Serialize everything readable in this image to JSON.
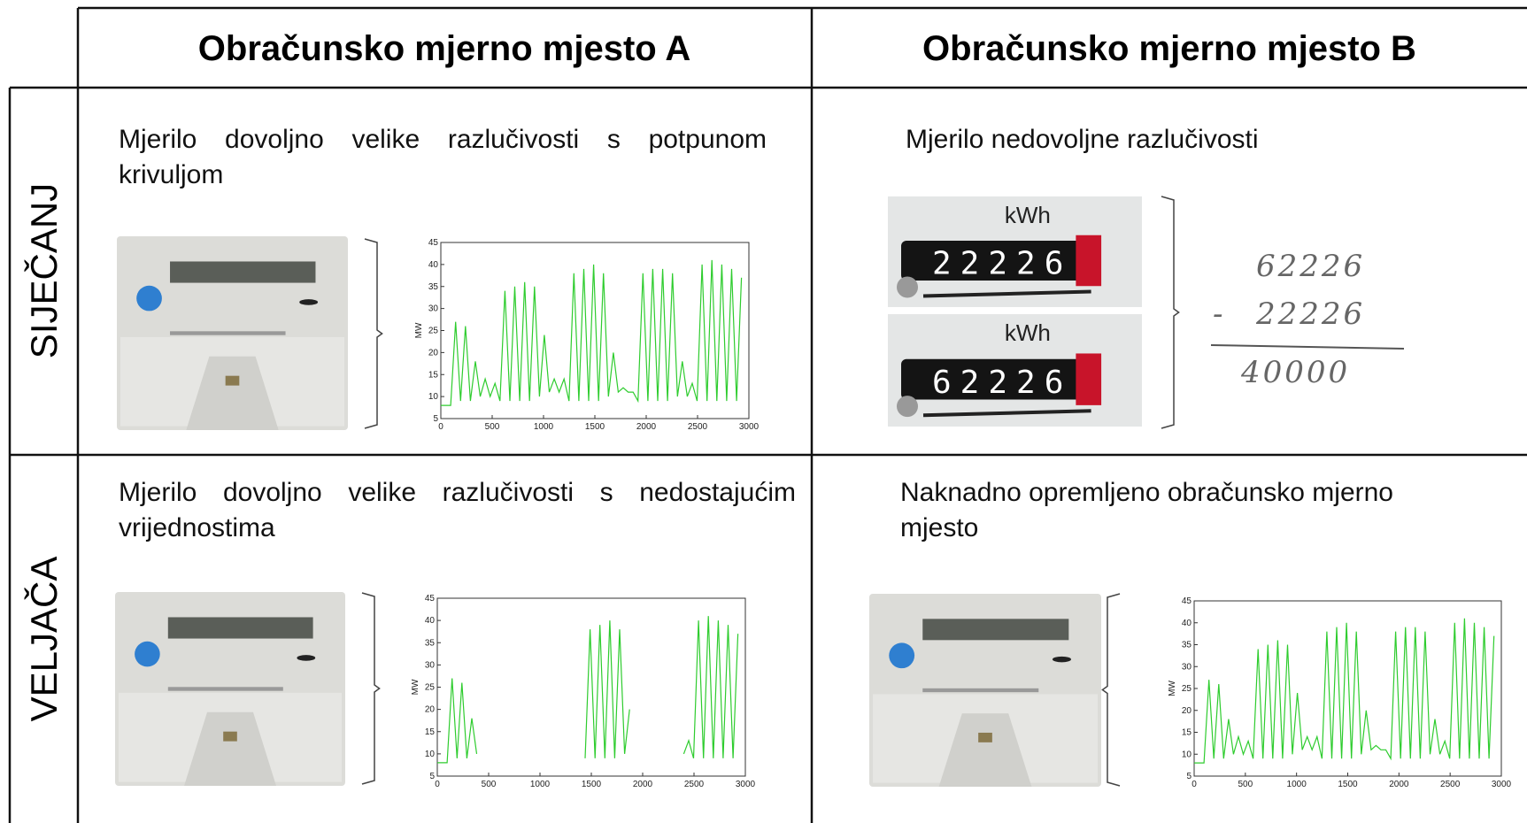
{
  "table": {
    "column_headers": [
      "Obračunsko mjerno mjesto A",
      "Obračunsko mjerno mjesto B"
    ],
    "row_headers": [
      "SIJEČANJ",
      "VELJAČA"
    ]
  },
  "cells": [
    "Mjerilo dovoljno velike razlučivosti s potpunom krivuljom",
    "Mjerilo nedovoljne razlučivosti",
    "Mjerilo dovoljno velike razlučivosti s nedostajućim vrijednostima",
    "Naknadno opremljeno obračunsko mjerno mjesto"
  ],
  "counters": [
    {
      "unit": "kWh",
      "reading": "22226"
    },
    {
      "unit": "kWh",
      "reading": "62226"
    }
  ],
  "calculation": {
    "minuend": "62226",
    "operator": "-",
    "subtrahend": "22226",
    "result": "40000"
  },
  "chart_data": [
    {
      "type": "line",
      "ylabel": "MW",
      "color": "#2ecc2e",
      "xlim": [
        0,
        3000
      ],
      "ylim": [
        5,
        45
      ],
      "xticks": [
        0,
        500,
        1000,
        1500,
        2000,
        2500,
        3000
      ],
      "yticks": [
        5,
        10,
        15,
        20,
        25,
        30,
        35,
        40,
        45
      ],
      "x": [
        0,
        48,
        96,
        144,
        192,
        240,
        288,
        336,
        384,
        432,
        480,
        528,
        576,
        624,
        672,
        720,
        768,
        816,
        864,
        912,
        960,
        1008,
        1056,
        1104,
        1152,
        1200,
        1248,
        1296,
        1344,
        1392,
        1440,
        1488,
        1536,
        1584,
        1632,
        1680,
        1728,
        1776,
        1824,
        1872,
        1920,
        1968,
        2016,
        2064,
        2112,
        2160,
        2208,
        2256,
        2304,
        2352,
        2400,
        2448,
        2496,
        2544,
        2592,
        2640,
        2688,
        2736,
        2784,
        2832,
        2880,
        2928
      ],
      "values": [
        8,
        8,
        8,
        27,
        9,
        26,
        9,
        18,
        10,
        14,
        10,
        13,
        9,
        34,
        9,
        35,
        9,
        36,
        9,
        35,
        10,
        24,
        11,
        14,
        11,
        14,
        9,
        38,
        9,
        39,
        9,
        40,
        9,
        38,
        10,
        20,
        11,
        12,
        11,
        11,
        9,
        38,
        9,
        39,
        9,
        39,
        9,
        38,
        10,
        18,
        10,
        13,
        9,
        40,
        9,
        41,
        9,
        40,
        9,
        39,
        9,
        37
      ]
    },
    {
      "type": "line",
      "ylabel": "MW",
      "color": "#2ecc2e",
      "xlim": [
        0,
        3000
      ],
      "ylim": [
        5,
        45
      ],
      "xticks": [
        0,
        500,
        1000,
        1500,
        2000,
        2500,
        3000
      ],
      "yticks": [
        5,
        10,
        15,
        20,
        25,
        30,
        35,
        40,
        45
      ],
      "x": [
        0,
        48,
        96,
        144,
        192,
        240,
        288,
        336,
        384,
        432,
        480,
        528,
        576,
        624,
        672,
        720,
        768,
        816,
        864,
        912,
        960,
        1008,
        1056,
        1104,
        1152,
        1200,
        1248,
        1296,
        1344,
        1392,
        1440,
        1488,
        1536,
        1584,
        1632,
        1680,
        1728,
        1776,
        1824,
        1872,
        1920,
        1968,
        2016,
        2064,
        2112,
        2160,
        2208,
        2256,
        2304,
        2352,
        2400,
        2448,
        2496,
        2544,
        2592,
        2640,
        2688,
        2736,
        2784,
        2832,
        2880,
        2928
      ],
      "values": [
        8,
        8,
        8,
        27,
        9,
        26,
        9,
        18,
        10,
        null,
        null,
        null,
        null,
        null,
        null,
        null,
        null,
        null,
        null,
        null,
        null,
        null,
        null,
        null,
        null,
        null,
        null,
        null,
        null,
        null,
        9,
        38,
        9,
        39,
        9,
        40,
        9,
        38,
        10,
        20,
        null,
        null,
        null,
        null,
        null,
        null,
        null,
        null,
        null,
        null,
        10,
        13,
        9,
        40,
        9,
        41,
        9,
        40,
        9,
        39,
        9,
        37
      ]
    },
    {
      "type": "line",
      "ylabel": "MW",
      "color": "#2ecc2e",
      "xlim": [
        0,
        3000
      ],
      "ylim": [
        5,
        45
      ],
      "xticks": [
        0,
        500,
        1000,
        1500,
        2000,
        2500,
        3000
      ],
      "yticks": [
        5,
        10,
        15,
        20,
        25,
        30,
        35,
        40,
        45
      ],
      "x": [
        0,
        48,
        96,
        144,
        192,
        240,
        288,
        336,
        384,
        432,
        480,
        528,
        576,
        624,
        672,
        720,
        768,
        816,
        864,
        912,
        960,
        1008,
        1056,
        1104,
        1152,
        1200,
        1248,
        1296,
        1344,
        1392,
        1440,
        1488,
        1536,
        1584,
        1632,
        1680,
        1728,
        1776,
        1824,
        1872,
        1920,
        1968,
        2016,
        2064,
        2112,
        2160,
        2208,
        2256,
        2304,
        2352,
        2400,
        2448,
        2496,
        2544,
        2592,
        2640,
        2688,
        2736,
        2784,
        2832,
        2880,
        2928
      ],
      "values": [
        8,
        8,
        8,
        27,
        9,
        26,
        9,
        18,
        10,
        14,
        10,
        13,
        9,
        34,
        9,
        35,
        9,
        36,
        9,
        35,
        10,
        24,
        11,
        14,
        11,
        14,
        9,
        38,
        9,
        39,
        9,
        40,
        9,
        38,
        10,
        20,
        11,
        12,
        11,
        11,
        9,
        38,
        9,
        39,
        9,
        39,
        9,
        38,
        10,
        18,
        10,
        13,
        9,
        40,
        9,
        41,
        9,
        40,
        9,
        39,
        9,
        37
      ]
    }
  ]
}
